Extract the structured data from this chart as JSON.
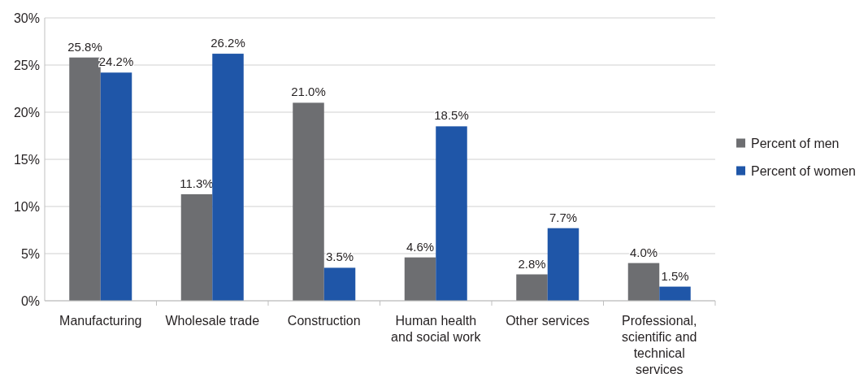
{
  "chart_data": {
    "type": "bar",
    "categories": [
      "Manufacturing",
      "Wholesale trade",
      "Construction",
      "Human health and social work",
      "Other services",
      "Professional, scientific and technical services"
    ],
    "series": [
      {
        "name": "Percent of men",
        "color": "#6d6e71",
        "values": [
          25.8,
          11.3,
          21.0,
          4.6,
          2.8,
          4.0
        ]
      },
      {
        "name": "Percent of women",
        "color": "#1f56a8",
        "values": [
          24.2,
          26.2,
          3.5,
          18.5,
          7.7,
          1.5
        ]
      }
    ],
    "value_labels": [
      [
        "25.8%",
        "11.3%",
        "21.0%",
        "4.6%",
        "2.8%",
        "4.0%"
      ],
      [
        "24.2%",
        "26.2%",
        "3.5%",
        "18.5%",
        "7.7%",
        "1.5%"
      ]
    ],
    "ylim": [
      0,
      30
    ],
    "yticks": [
      {
        "value": 0,
        "label": "0%"
      },
      {
        "value": 5,
        "label": "5%"
      },
      {
        "value": 10,
        "label": "10%"
      },
      {
        "value": 15,
        "label": "15%"
      },
      {
        "value": 20,
        "label": "20%"
      },
      {
        "value": 25,
        "label": "25%"
      },
      {
        "value": 30,
        "label": "30%"
      }
    ],
    "grid": "y",
    "legend": "right"
  }
}
